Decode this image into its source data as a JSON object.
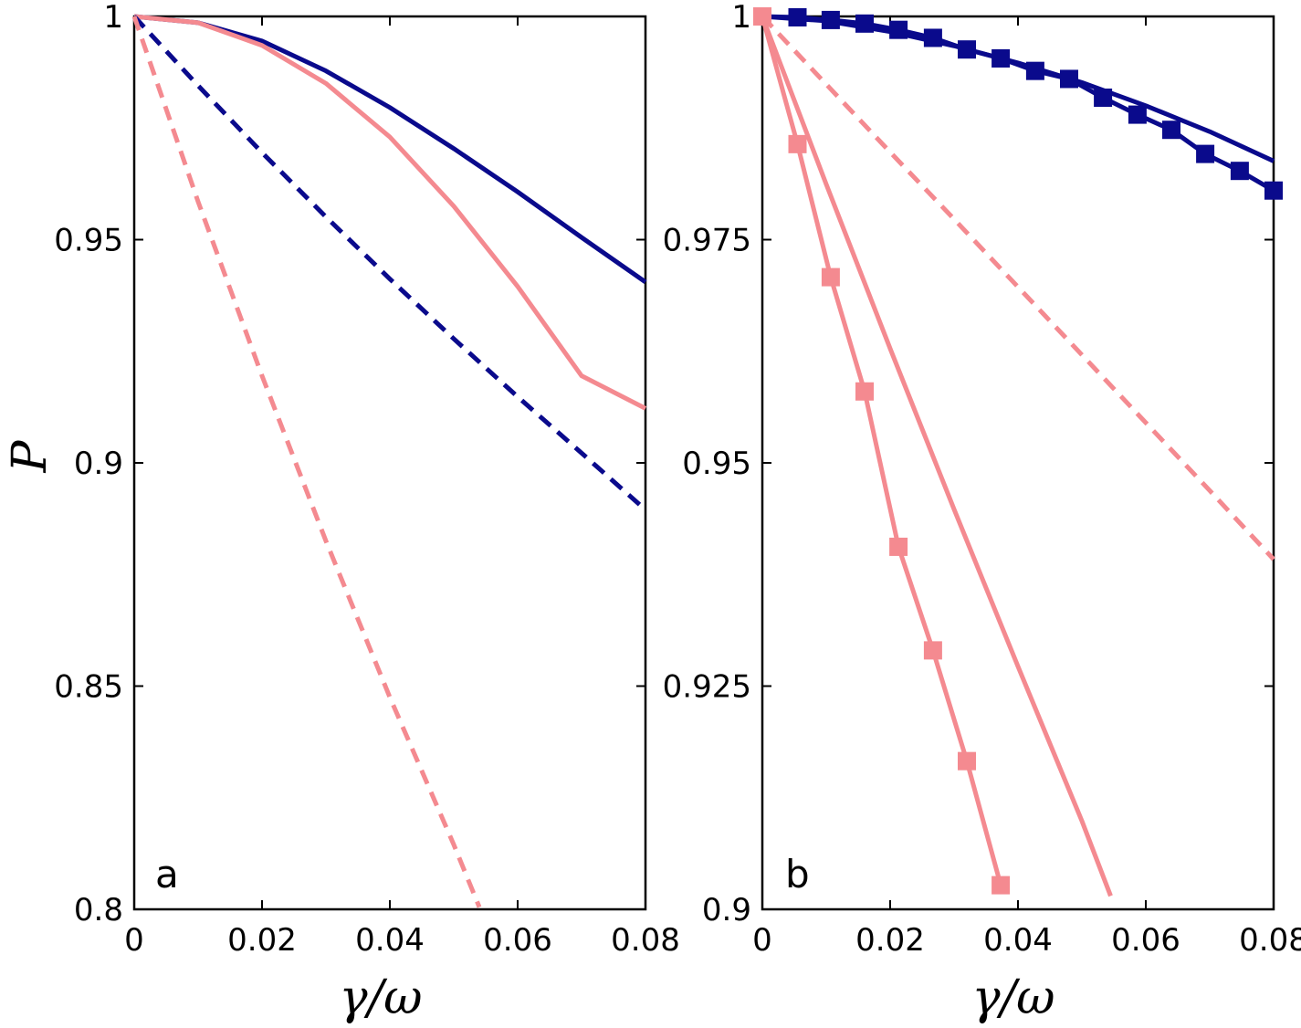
{
  "chart_data": [
    {
      "type": "line",
      "panel_label": "a",
      "xlabel": "γ/ω",
      "ylabel": "P",
      "xlim": [
        0,
        0.08
      ],
      "ylim": [
        0.8,
        1
      ],
      "xticks": [
        0,
        0.02,
        0.04,
        0.06,
        0.08
      ],
      "xtick_labels": [
        "0",
        "0.02",
        "0.04",
        "0.06",
        "0.08"
      ],
      "yticks": [
        0.8,
        0.85,
        0.9,
        0.95,
        1
      ],
      "ytick_labels": [
        "0.8",
        "0.85",
        "0.9",
        "0.95",
        "1"
      ],
      "series": [
        {
          "name": "navy solid",
          "color": "#0a0a8c",
          "dash": false,
          "markers": false,
          "x": [
            0,
            0.01,
            0.02,
            0.03,
            0.04,
            0.05,
            0.06,
            0.07,
            0.08
          ],
          "y": [
            1.0,
            0.9986,
            0.9945,
            0.9878,
            0.9796,
            0.9704,
            0.9607,
            0.9505,
            0.9405
          ]
        },
        {
          "name": "pink solid",
          "color": "#f48a90",
          "dash": false,
          "markers": false,
          "x": [
            0,
            0.01,
            0.02,
            0.03,
            0.04,
            0.05,
            0.06,
            0.07,
            0.08
          ],
          "y": [
            1.0,
            0.9986,
            0.9935,
            0.985,
            0.973,
            0.9575,
            0.9395,
            0.9195,
            0.9122
          ]
        },
        {
          "name": "navy dashed",
          "color": "#0a0a8c",
          "dash": true,
          "markers": false,
          "x": [
            0,
            0.01,
            0.02,
            0.03,
            0.04,
            0.05,
            0.06,
            0.07,
            0.08
          ],
          "y": [
            1.0,
            0.9845,
            0.9695,
            0.9551,
            0.9412,
            0.9278,
            0.9148,
            0.9022,
            0.8895
          ]
        },
        {
          "name": "pink dashed",
          "color": "#f48a90",
          "dash": true,
          "markers": false,
          "x": [
            0,
            0.01,
            0.02,
            0.03,
            0.04,
            0.05,
            0.054
          ],
          "y": [
            1.0,
            0.9585,
            0.9195,
            0.8825,
            0.8475,
            0.8145,
            0.8005
          ]
        }
      ]
    },
    {
      "type": "line",
      "panel_label": "b",
      "xlabel": "γ/ω",
      "ylabel": "",
      "xlim": [
        0,
        0.08
      ],
      "ylim": [
        0.9,
        1
      ],
      "xticks": [
        0,
        0.02,
        0.04,
        0.06,
        0.08
      ],
      "xtick_labels": [
        "0",
        "0.02",
        "0.04",
        "0.06",
        "0.08"
      ],
      "yticks": [
        0.9,
        0.925,
        0.95,
        0.975,
        1
      ],
      "ytick_labels": [
        "0.9",
        "0.925",
        "0.95",
        "0.975",
        "1"
      ],
      "series": [
        {
          "name": "navy solid",
          "color": "#0a0a8c",
          "dash": false,
          "markers": false,
          "x": [
            0,
            0.01,
            0.02,
            0.03,
            0.04,
            0.05,
            0.06,
            0.07,
            0.08
          ],
          "y": [
            1.0,
            0.9995,
            0.9983,
            0.9967,
            0.9948,
            0.9926,
            0.99,
            0.9871,
            0.9838
          ]
        },
        {
          "name": "navy squares",
          "color": "#0a0a8c",
          "dash": false,
          "markers": true,
          "x": [
            0,
            0.0055,
            0.0107,
            0.016,
            0.0213,
            0.0267,
            0.032,
            0.0373,
            0.0427,
            0.048,
            0.0533,
            0.0587,
            0.064,
            0.0693,
            0.0747,
            0.08
          ],
          "y": [
            1.0,
            0.9999,
            0.9996,
            0.9992,
            0.9985,
            0.9976,
            0.9963,
            0.9953,
            0.9939,
            0.993,
            0.9909,
            0.989,
            0.9873,
            0.9846,
            0.9827,
            0.9805
          ]
        },
        {
          "name": "pink solid",
          "color": "#f48a90",
          "dash": false,
          "markers": false,
          "x": [
            0,
            0.01,
            0.02,
            0.03,
            0.04,
            0.05,
            0.0545
          ],
          "y": [
            1.0,
            0.9812,
            0.9628,
            0.9448,
            0.9272,
            0.9099,
            0.9015
          ]
        },
        {
          "name": "pink dashed",
          "color": "#f48a90",
          "dash": true,
          "markers": false,
          "x": [
            0,
            0.01,
            0.02,
            0.03,
            0.04,
            0.05,
            0.06,
            0.07,
            0.08
          ],
          "y": [
            1.0,
            0.9924,
            0.9848,
            0.9773,
            0.9697,
            0.9621,
            0.9545,
            0.9469,
            0.9392
          ]
        },
        {
          "name": "pink squares",
          "color": "#f48a90",
          "dash": false,
          "markers": true,
          "x": [
            0,
            0.0055,
            0.0107,
            0.016,
            0.0213,
            0.0267,
            0.032,
            0.0373
          ],
          "y": [
            1.0,
            0.9857,
            0.9708,
            0.958,
            0.9406,
            0.929,
            0.9166,
            0.9027
          ]
        }
      ]
    }
  ]
}
